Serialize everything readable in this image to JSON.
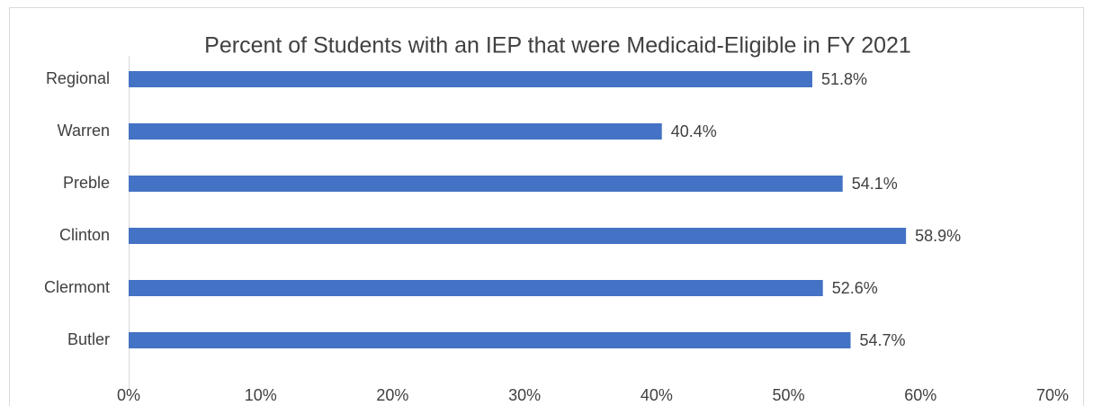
{
  "chart_data": {
    "type": "bar",
    "orientation": "horizontal",
    "title": "Percent of Students with an IEP that were Medicaid-Eligible in FY 2021",
    "categories": [
      "Regional",
      "Warren",
      "Preble",
      "Clinton",
      "Clermont",
      "Butler"
    ],
    "values": [
      51.8,
      40.4,
      54.1,
      58.9,
      52.6,
      54.7
    ],
    "value_labels": [
      "51.8%",
      "40.4%",
      "54.1%",
      "58.9%",
      "52.6%",
      "54.7%"
    ],
    "color": "#4472c4",
    "xlim": [
      0,
      70
    ],
    "xticks": [
      {
        "value": 0,
        "label": "0%"
      },
      {
        "value": 10,
        "label": "10%"
      },
      {
        "value": 20,
        "label": "20%"
      },
      {
        "value": 30,
        "label": "30%"
      },
      {
        "value": 40,
        "label": "40%"
      },
      {
        "value": 50,
        "label": "50%"
      },
      {
        "value": 60,
        "label": "60%"
      },
      {
        "value": 70,
        "label": "70%"
      }
    ],
    "grid": false
  }
}
